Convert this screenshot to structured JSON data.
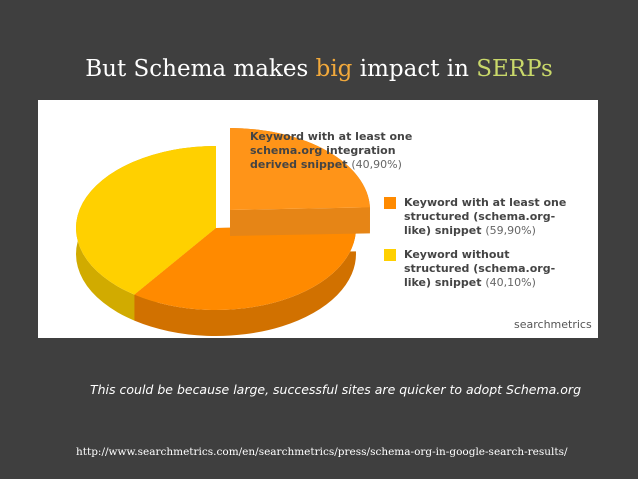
{
  "slide": {
    "title_parts": [
      "But Schema makes ",
      "big",
      " impact in ",
      "SERPs"
    ],
    "title_colors": [
      "#ffffff",
      "#f2a93b",
      "#ffffff",
      "#c9d86a"
    ],
    "caption": "This could be because large, successful sites are quicker to adopt Schema.org",
    "url": "http://www.searchmetrics.com/en/searchmetrics/press/schema-org-in-google-search-results/",
    "logo": "searchmetrics"
  },
  "chart_data": {
    "type": "pie",
    "categories": [
      "Keyword with at least one schema.org integration derived snippet",
      "Keyword with at least one structured (schema.org-like) snippet",
      "Keyword without structured (schema.org-like) snippet"
    ],
    "values": [
      40.9,
      59.9,
      40.1
    ],
    "value_labels": [
      "(40,90%)",
      "(59,90%)",
      "(40,10%)"
    ],
    "colors": [
      "#ff9418",
      "#ff8a00",
      "#ffd000"
    ]
  }
}
